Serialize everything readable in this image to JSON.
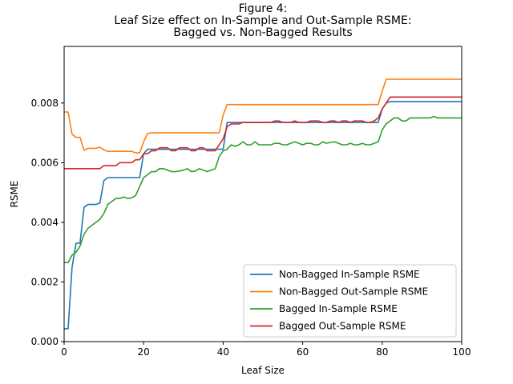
{
  "chart_data": {
    "type": "line",
    "title": [
      "Figure 4:",
      "Leaf Size effect on In-Sample and Out-Sample RSME:",
      "Bagged vs. Non-Bagged Results"
    ],
    "xlabel": "Leaf Size",
    "ylabel": "RSME",
    "xlim": [
      0,
      100
    ],
    "ylim": [
      0,
      0.0099
    ],
    "xticks": [
      0,
      20,
      40,
      60,
      80,
      100
    ],
    "yticks": [
      0,
      0.002,
      0.004,
      0.006,
      0.008
    ],
    "yticks_labels": [
      "0.000",
      "0.002",
      "0.004",
      "0.006",
      "0.008"
    ],
    "grid": false,
    "legend_position": "lower-right",
    "x": [
      0,
      1,
      2,
      3,
      4,
      5,
      6,
      7,
      8,
      9,
      10,
      11,
      12,
      13,
      14,
      15,
      16,
      17,
      18,
      19,
      20,
      21,
      22,
      23,
      24,
      25,
      26,
      27,
      28,
      29,
      30,
      31,
      32,
      33,
      34,
      35,
      36,
      37,
      38,
      39,
      40,
      41,
      42,
      43,
      44,
      45,
      46,
      47,
      48,
      49,
      50,
      51,
      52,
      53,
      54,
      55,
      56,
      57,
      58,
      59,
      60,
      61,
      62,
      63,
      64,
      65,
      66,
      67,
      68,
      69,
      70,
      71,
      72,
      73,
      74,
      75,
      76,
      77,
      78,
      79,
      80,
      81,
      82,
      83,
      84,
      85,
      86,
      87,
      88,
      89,
      90,
      91,
      92,
      93,
      94,
      95,
      96,
      97,
      98,
      99,
      100
    ],
    "series": [
      {
        "name": "Non-Bagged In-Sample RSME",
        "color": "#1f77b4",
        "values": [
          0.00043,
          0.00043,
          0.0025,
          0.0033,
          0.0033,
          0.0045,
          0.0046,
          0.0046,
          0.0046,
          0.00465,
          0.0054,
          0.0055,
          0.0055,
          0.0055,
          0.0055,
          0.0055,
          0.0055,
          0.0055,
          0.0055,
          0.0055,
          0.0063,
          0.00645,
          0.00645,
          0.00645,
          0.00645,
          0.00645,
          0.00645,
          0.00645,
          0.00645,
          0.00645,
          0.00645,
          0.00645,
          0.00645,
          0.00645,
          0.00645,
          0.00645,
          0.00645,
          0.00645,
          0.00645,
          0.00645,
          0.00645,
          0.00735,
          0.00735,
          0.00735,
          0.00735,
          0.00735,
          0.00735,
          0.00735,
          0.00735,
          0.00735,
          0.00735,
          0.00735,
          0.00735,
          0.00735,
          0.00735,
          0.00735,
          0.00735,
          0.00735,
          0.00735,
          0.00735,
          0.00735,
          0.00735,
          0.00735,
          0.00735,
          0.00735,
          0.00735,
          0.00735,
          0.00735,
          0.00735,
          0.00735,
          0.00735,
          0.00735,
          0.00735,
          0.00735,
          0.00735,
          0.00735,
          0.00735,
          0.00735,
          0.00735,
          0.00735,
          0.0078,
          0.008,
          0.00805,
          0.00805,
          0.00805,
          0.00805,
          0.00805,
          0.00805,
          0.00805,
          0.00805,
          0.00805,
          0.00805,
          0.00805,
          0.00805,
          0.00805,
          0.00805,
          0.00805,
          0.00805,
          0.00805,
          0.00805,
          0.00805
        ]
      },
      {
        "name": "Non-Bagged Out-Sample RSME",
        "color": "#ff7f0e",
        "values": [
          0.0077,
          0.0077,
          0.00695,
          0.00685,
          0.00685,
          0.00642,
          0.00648,
          0.00648,
          0.00648,
          0.00652,
          0.00643,
          0.00638,
          0.00638,
          0.00638,
          0.00638,
          0.00638,
          0.00638,
          0.00638,
          0.00633,
          0.00633,
          0.0067,
          0.00698,
          0.007,
          0.007,
          0.007,
          0.007,
          0.007,
          0.007,
          0.007,
          0.007,
          0.007,
          0.007,
          0.007,
          0.007,
          0.007,
          0.007,
          0.007,
          0.007,
          0.007,
          0.007,
          0.0076,
          0.00795,
          0.00795,
          0.00795,
          0.00795,
          0.00795,
          0.00795,
          0.00795,
          0.00795,
          0.00795,
          0.00795,
          0.00795,
          0.00795,
          0.00795,
          0.00795,
          0.00795,
          0.00795,
          0.00795,
          0.00795,
          0.00795,
          0.00795,
          0.00795,
          0.00795,
          0.00795,
          0.00795,
          0.00795,
          0.00795,
          0.00795,
          0.00795,
          0.00795,
          0.00795,
          0.00795,
          0.00795,
          0.00795,
          0.00795,
          0.00795,
          0.00795,
          0.00795,
          0.00795,
          0.00795,
          0.0084,
          0.0088,
          0.0088,
          0.0088,
          0.0088,
          0.0088,
          0.0088,
          0.0088,
          0.0088,
          0.0088,
          0.0088,
          0.0088,
          0.0088,
          0.0088,
          0.0088,
          0.0088,
          0.0088,
          0.0088,
          0.0088,
          0.0088,
          0.0088
        ]
      },
      {
        "name": "Bagged In-Sample RSME",
        "color": "#2ca02c",
        "values": [
          0.00265,
          0.00265,
          0.0029,
          0.003,
          0.0032,
          0.0036,
          0.0038,
          0.0039,
          0.004,
          0.0041,
          0.0043,
          0.0046,
          0.0047,
          0.0048,
          0.0048,
          0.00485,
          0.0048,
          0.00482,
          0.0049,
          0.0052,
          0.0055,
          0.0056,
          0.0057,
          0.0057,
          0.0058,
          0.0058,
          0.00575,
          0.0057,
          0.0057,
          0.00572,
          0.00575,
          0.0058,
          0.0057,
          0.00572,
          0.0058,
          0.00575,
          0.0057,
          0.00575,
          0.0058,
          0.0062,
          0.0064,
          0.00645,
          0.0066,
          0.00655,
          0.0066,
          0.0067,
          0.0066,
          0.0066,
          0.0067,
          0.0066,
          0.0066,
          0.0066,
          0.0066,
          0.00665,
          0.00665,
          0.0066,
          0.0066,
          0.00665,
          0.0067,
          0.00665,
          0.0066,
          0.00665,
          0.00665,
          0.0066,
          0.0066,
          0.0067,
          0.00665,
          0.00668,
          0.0067,
          0.00665,
          0.0066,
          0.0066,
          0.00665,
          0.0066,
          0.0066,
          0.00665,
          0.0066,
          0.0066,
          0.00665,
          0.0067,
          0.0071,
          0.0073,
          0.0074,
          0.0075,
          0.0075,
          0.0074,
          0.0074,
          0.0075,
          0.0075,
          0.0075,
          0.0075,
          0.0075,
          0.0075,
          0.00755,
          0.0075,
          0.0075,
          0.0075,
          0.0075,
          0.0075,
          0.0075,
          0.0075
        ]
      },
      {
        "name": "Bagged Out-Sample RSME",
        "color": "#d62728",
        "values": [
          0.0058,
          0.0058,
          0.0058,
          0.0058,
          0.0058,
          0.0058,
          0.0058,
          0.0058,
          0.0058,
          0.0058,
          0.0059,
          0.0059,
          0.0059,
          0.0059,
          0.006,
          0.006,
          0.006,
          0.006,
          0.0061,
          0.0061,
          0.0063,
          0.0063,
          0.0064,
          0.0064,
          0.0065,
          0.0065,
          0.0065,
          0.0064,
          0.0064,
          0.0065,
          0.0065,
          0.0065,
          0.0064,
          0.0064,
          0.0065,
          0.0065,
          0.0064,
          0.0064,
          0.0064,
          0.0066,
          0.0068,
          0.0072,
          0.0073,
          0.0073,
          0.0073,
          0.00735,
          0.00735,
          0.00735,
          0.00735,
          0.00735,
          0.00735,
          0.00735,
          0.00735,
          0.0074,
          0.0074,
          0.00735,
          0.00735,
          0.00735,
          0.0074,
          0.00735,
          0.00735,
          0.00735,
          0.0074,
          0.0074,
          0.0074,
          0.00735,
          0.00735,
          0.0074,
          0.0074,
          0.00735,
          0.0074,
          0.0074,
          0.00735,
          0.0074,
          0.0074,
          0.0074,
          0.00735,
          0.00735,
          0.0074,
          0.0075,
          0.0078,
          0.008,
          0.0082,
          0.0082,
          0.0082,
          0.0082,
          0.0082,
          0.0082,
          0.0082,
          0.0082,
          0.0082,
          0.0082,
          0.0082,
          0.0082,
          0.0082,
          0.0082,
          0.0082,
          0.0082,
          0.0082,
          0.0082,
          0.0082
        ]
      }
    ]
  }
}
